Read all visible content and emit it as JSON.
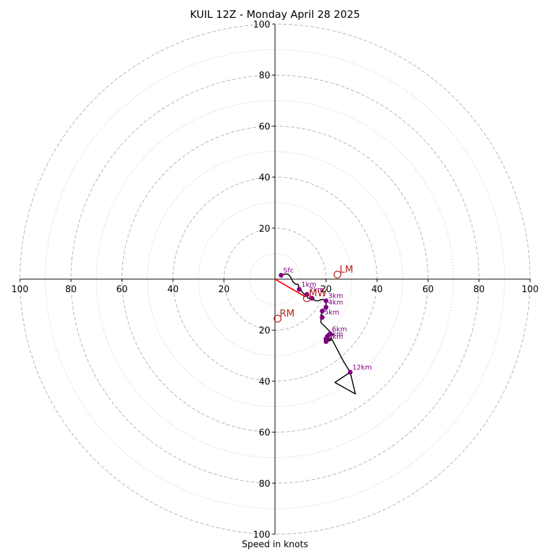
{
  "chart_data": {
    "type": "scatter",
    "title": "KUIL 12Z - Monday April 28 2025",
    "xlabel": "Speed in knots",
    "ylabel": "",
    "xlim": [
      -100,
      100
    ],
    "ylim": [
      -100,
      100
    ],
    "ring_major": [
      20,
      40,
      60,
      80,
      100
    ],
    "ring_minor": [
      10,
      30,
      50,
      70,
      90
    ],
    "x_ticks": [
      {
        "value": -100,
        "label": "100"
      },
      {
        "value": -80,
        "label": "80"
      },
      {
        "value": -60,
        "label": "60"
      },
      {
        "value": -40,
        "label": "40"
      },
      {
        "value": -20,
        "label": "20"
      },
      {
        "value": 20,
        "label": "20"
      },
      {
        "value": 40,
        "label": "40"
      },
      {
        "value": 60,
        "label": "60"
      },
      {
        "value": 80,
        "label": "80"
      },
      {
        "value": 100,
        "label": "100"
      }
    ],
    "y_ticks": [
      {
        "value": 100,
        "label": "100"
      },
      {
        "value": 80,
        "label": "80"
      },
      {
        "value": 60,
        "label": "60"
      },
      {
        "value": 40,
        "label": "40"
      },
      {
        "value": 20,
        "label": "20"
      },
      {
        "value": -20,
        "label": "20"
      },
      {
        "value": -40,
        "label": "40"
      },
      {
        "value": -60,
        "label": "60"
      },
      {
        "value": -80,
        "label": "80"
      },
      {
        "value": -100,
        "label": "100"
      }
    ],
    "hodograph": {
      "x": [
        2.4,
        4,
        5,
        6,
        7,
        8,
        9,
        9.5,
        10,
        11,
        11.5,
        12,
        13,
        14,
        15,
        16,
        17,
        18,
        19,
        20,
        20,
        19,
        18,
        18.5,
        18,
        18,
        18,
        20,
        21.5,
        23,
        20.5,
        21,
        22,
        20,
        22,
        27,
        29.5,
        31.5,
        23.5,
        29.5
      ],
      "y": [
        1.5,
        2,
        2,
        1,
        -1,
        -2,
        -2,
        -3.5,
        -4,
        -5.5,
        -6,
        -5.5,
        -7.5,
        -7.5,
        -8,
        -8.5,
        -8.5,
        -8,
        -8,
        -8.5,
        -10.5,
        -12,
        -12.5,
        -13.5,
        -14,
        -15,
        -17,
        -19,
        -20.5,
        -22,
        -21.5,
        -23,
        -24,
        -24.5,
        -23,
        -32.5,
        -36.5,
        -45,
        -40.5,
        -36.5
      ],
      "color": "#000000"
    },
    "height_markers": [
      {
        "label": "Sfc",
        "x": 2.4,
        "y": 1.5
      },
      {
        "label": "1km",
        "x": 9.5,
        "y": -4
      },
      {
        "label": "2km",
        "x": 12.5,
        "y": -6
      },
      {
        "label": "",
        "x": 14.5,
        "y": -7.5
      },
      {
        "label": "3km",
        "x": 20,
        "y": -8.5
      },
      {
        "label": "4km",
        "x": 20,
        "y": -11
      },
      {
        "label": "",
        "x": 18.5,
        "y": -12.5
      },
      {
        "label": "5km",
        "x": 18.5,
        "y": -15
      },
      {
        "label": "6km",
        "x": 21.5,
        "y": -21.5
      },
      {
        "label": "",
        "x": 20.5,
        "y": -22.5
      },
      {
        "label": "8km",
        "x": 20,
        "y": -23.5
      },
      {
        "label": "9km",
        "x": 20,
        "y": -24.5
      },
      {
        "label": "12km",
        "x": 29.5,
        "y": -36.5
      }
    ],
    "marker_color": "#800080",
    "storm_motion": [
      {
        "label": "LM",
        "x": 24.5,
        "y": 1.8
      },
      {
        "label": "MW",
        "x": 12.5,
        "y": -7.5
      },
      {
        "label": "RM",
        "x": 1,
        "y": -15.5
      }
    ],
    "storm_color": "#b22222",
    "shear_vector": {
      "from": [
        0,
        0
      ],
      "to": [
        12,
        -7
      ],
      "color": "#ff0000"
    }
  }
}
